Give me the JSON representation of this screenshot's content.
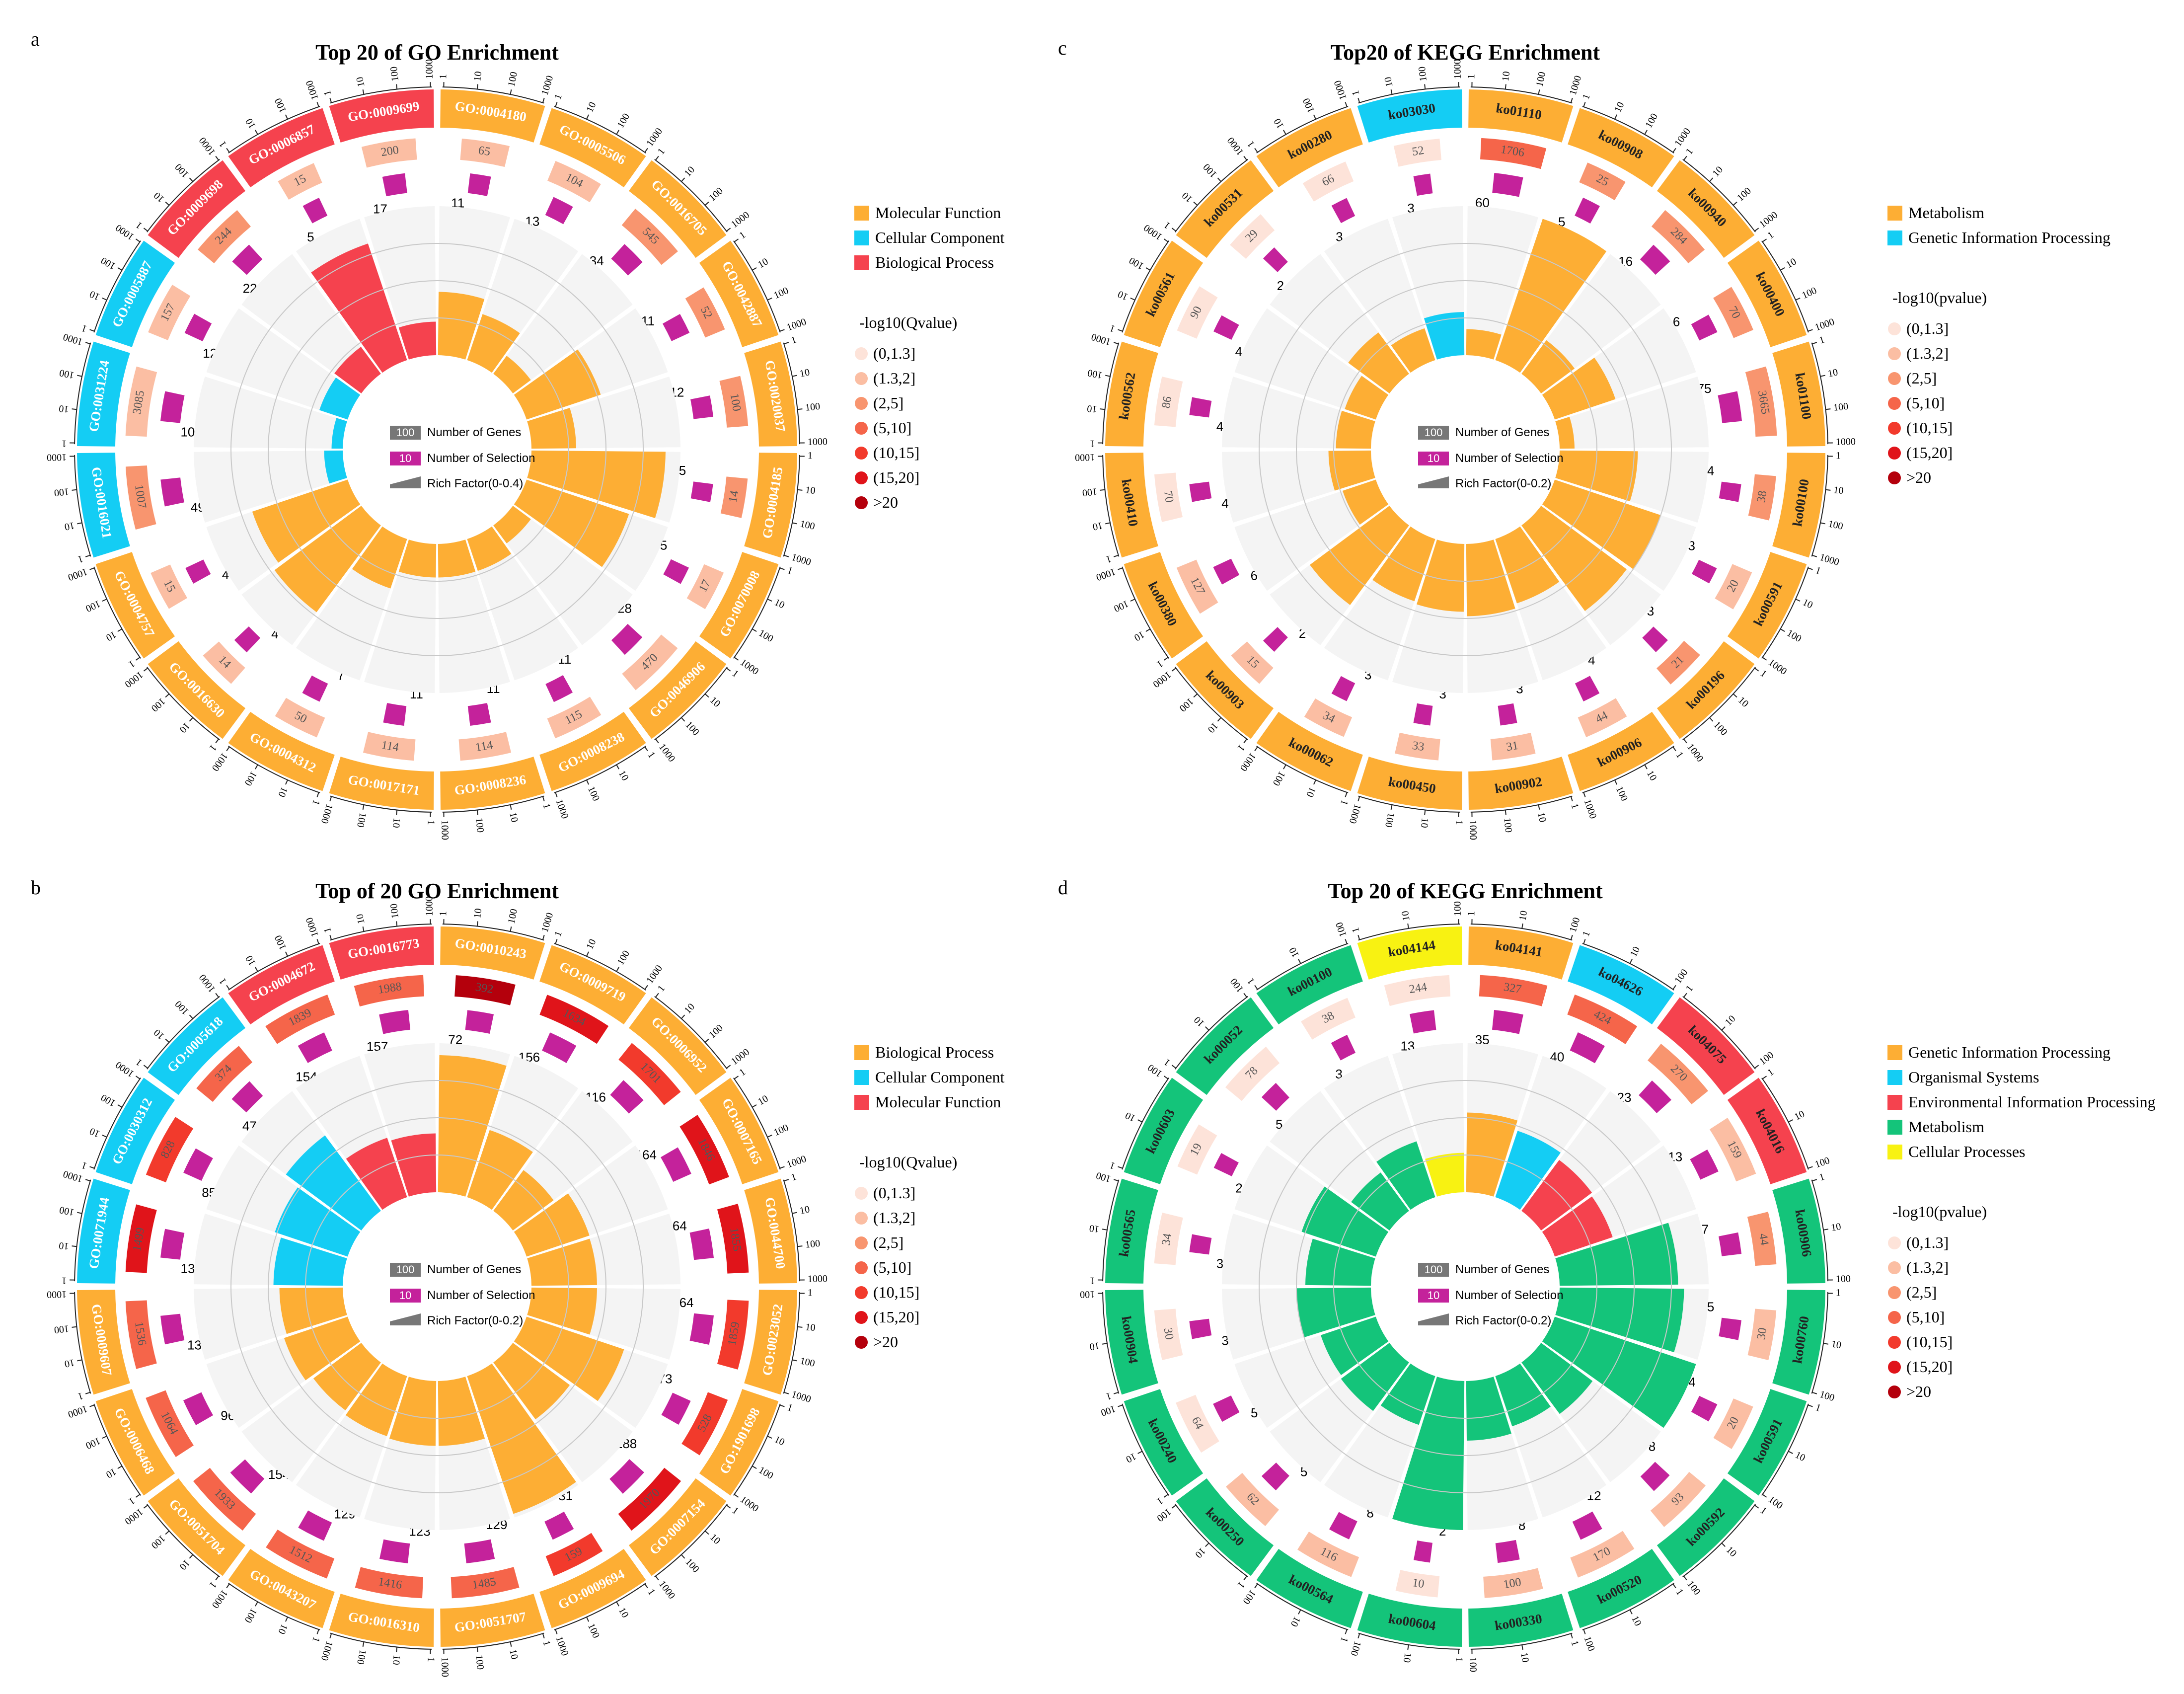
{
  "panels_info": "four circular enrichment plots",
  "colors": {
    "orange": "#fdae34",
    "blue": "#14cdf4",
    "red": "#f5424e",
    "green": "#14c47a",
    "yellow": "#f8f212",
    "magenta": "#c4229b",
    "gray_bg": "#f4f4f4",
    "q0": "#fde3d9",
    "q1": "#fbbea3",
    "q2": "#f8956f",
    "q3": "#f5654a",
    "q4": "#f23a2c",
    "q5": "#e0141a",
    "q6": "#b4000c"
  },
  "shared_legend": {
    "genes_label": "Number of Genes",
    "genes_badge": "100",
    "selection_label": "Number of Selection",
    "selection_badge": "10",
    "q_bins": [
      "(0,1.3]",
      "(1.3,2]",
      "(2,5]",
      "(5,10]",
      "(10,15]",
      "(15,20]",
      ">20"
    ]
  },
  "chart_data": [
    {
      "type": "circular-bar",
      "panel": "a",
      "title": "Top 20 of GO Enrichment",
      "rich_label": "Rich Factor(0-0.4)",
      "rich_max": 0.4,
      "sig_title": "-log10(Qvalue)",
      "categories": [
        {
          "name": "Molecular Function",
          "color": "orange"
        },
        {
          "name": "Cellular Component",
          "color": "blue"
        },
        {
          "name": "Biological Process",
          "color": "red"
        }
      ],
      "ticks": [
        "1",
        "10",
        "100",
        "1000"
      ],
      "terms": [
        {
          "id": "GO:0004180",
          "cat": 0,
          "genes": 65,
          "sel": 11,
          "rich": 0.17,
          "q": 1
        },
        {
          "id": "GO:0005506",
          "cat": 0,
          "genes": 104,
          "sel": 13,
          "rich": 0.13,
          "q": 1
        },
        {
          "id": "GO:0016705",
          "cat": 0,
          "genes": 545,
          "sel": 34,
          "rich": 0.06,
          "q": 2
        },
        {
          "id": "GO:0042887",
          "cat": 0,
          "genes": 52,
          "sel": 11,
          "rich": 0.21,
          "q": 2
        },
        {
          "id": "GO:0020037",
          "cat": 0,
          "genes": 100,
          "sel": 12,
          "rich": 0.12,
          "q": 2
        },
        {
          "id": "GO:0004185",
          "cat": 0,
          "genes": 14,
          "sel": 5,
          "rich": 0.36,
          "q": 2
        },
        {
          "id": "GO:0070008",
          "cat": 0,
          "genes": 17,
          "sel": 5,
          "rich": 0.29,
          "q": 1
        },
        {
          "id": "GO:0046906",
          "cat": 0,
          "genes": 470,
          "sel": 28,
          "rich": 0.06,
          "q": 1
        },
        {
          "id": "GO:0008238",
          "cat": 0,
          "genes": 115,
          "sel": 11,
          "rich": 0.09,
          "q": 1
        },
        {
          "id": "GO:0008236",
          "cat": 0,
          "genes": 114,
          "sel": 11,
          "rich": 0.09,
          "q": 1
        },
        {
          "id": "GO:0017171",
          "cat": 0,
          "genes": 114,
          "sel": 11,
          "rich": 0.09,
          "q": 1
        },
        {
          "id": "GO:0004312",
          "cat": 0,
          "genes": 50,
          "sel": 7,
          "rich": 0.14,
          "q": 1
        },
        {
          "id": "GO:0016630",
          "cat": 0,
          "genes": 14,
          "sel": 4,
          "rich": 0.29,
          "q": 1
        },
        {
          "id": "GO:0004757",
          "cat": 0,
          "genes": 15,
          "sel": 4,
          "rich": 0.27,
          "q": 1
        },
        {
          "id": "GO:0016021",
          "cat": 1,
          "genes": 1007,
          "sel": 49,
          "rich": 0.05,
          "q": 2
        },
        {
          "id": "GO:0031224",
          "cat": 1,
          "genes": 3085,
          "sel": 105,
          "rich": 0.03,
          "q": 1
        },
        {
          "id": "GO:0005887",
          "cat": 1,
          "genes": 157,
          "sel": 12,
          "rich": 0.08,
          "q": 1
        },
        {
          "id": "GO:0009698",
          "cat": 2,
          "genes": 244,
          "sel": 22,
          "rich": 0.09,
          "q": 2
        },
        {
          "id": "GO:0006857",
          "cat": 2,
          "genes": 15,
          "sel": 5,
          "rich": 0.33,
          "q": 1
        },
        {
          "id": "GO:0009699",
          "cat": 2,
          "genes": 200,
          "sel": 17,
          "rich": 0.09,
          "q": 1
        }
      ]
    },
    {
      "type": "circular-bar",
      "panel": "c",
      "title": "Top20 of KEGG Enrichment",
      "rich_label": "Rich Factor(0-0.2)",
      "rich_max": 0.2,
      "sig_title": "-log10(pvalue)",
      "categories": [
        {
          "name": "Metabolism",
          "color": "orange"
        },
        {
          "name": "Genetic Information Processing",
          "color": "blue"
        }
      ],
      "ticks": [
        "1",
        "10",
        "100",
        "1000"
      ],
      "terms": [
        {
          "id": "ko01110",
          "cat": 0,
          "genes": 1706,
          "sel": 60,
          "rich": 0.035,
          "q": 3
        },
        {
          "id": "ko00908",
          "cat": 0,
          "genes": 25,
          "sel": 5,
          "rich": 0.2,
          "q": 2
        },
        {
          "id": "ko00940",
          "cat": 0,
          "genes": 284,
          "sel": 16,
          "rich": 0.056,
          "q": 2
        },
        {
          "id": "ko00400",
          "cat": 0,
          "genes": 70,
          "sel": 6,
          "rich": 0.086,
          "q": 2
        },
        {
          "id": "ko01100",
          "cat": 0,
          "genes": 3665,
          "sel": 75,
          "rich": 0.02,
          "q": 2
        },
        {
          "id": "ko00100",
          "cat": 0,
          "genes": 38,
          "sel": 4,
          "rich": 0.105,
          "q": 2
        },
        {
          "id": "ko00591",
          "cat": 0,
          "genes": 20,
          "sel": 3,
          "rich": 0.15,
          "q": 1
        },
        {
          "id": "ko00196",
          "cat": 0,
          "genes": 21,
          "sel": 3,
          "rich": 0.143,
          "q": 2
        },
        {
          "id": "ko00906",
          "cat": 0,
          "genes": 44,
          "sel": 4,
          "rich": 0.091,
          "q": 1
        },
        {
          "id": "ko00902",
          "cat": 0,
          "genes": 31,
          "sel": 3,
          "rich": 0.097,
          "q": 1
        },
        {
          "id": "ko00450",
          "cat": 0,
          "genes": 33,
          "sel": 3,
          "rich": 0.091,
          "q": 1
        },
        {
          "id": "ko00062",
          "cat": 0,
          "genes": 34,
          "sel": 3,
          "rich": 0.088,
          "q": 1
        },
        {
          "id": "ko00903",
          "cat": 0,
          "genes": 15,
          "sel": 2,
          "rich": 0.133,
          "q": 1
        },
        {
          "id": "ko00380",
          "cat": 0,
          "genes": 127,
          "sel": 6,
          "rich": 0.047,
          "q": 1
        },
        {
          "id": "ko00410",
          "cat": 0,
          "genes": 70,
          "sel": 4,
          "rich": 0.057,
          "q": 0
        },
        {
          "id": "ko00562",
          "cat": 0,
          "genes": 86,
          "sel": 4,
          "rich": 0.047,
          "q": 0
        },
        {
          "id": "ko00561",
          "cat": 0,
          "genes": 90,
          "sel": 4,
          "rich": 0.044,
          "q": 0
        },
        {
          "id": "ko00531",
          "cat": 0,
          "genes": 29,
          "sel": 2,
          "rich": 0.069,
          "q": 0
        },
        {
          "id": "ko00280",
          "cat": 0,
          "genes": 66,
          "sel": 3,
          "rich": 0.045,
          "q": 0
        },
        {
          "id": "ko03030",
          "cat": 1,
          "genes": 52,
          "sel": 3,
          "rich": 0.058,
          "q": 0
        }
      ]
    },
    {
      "type": "circular-bar",
      "panel": "b",
      "title": "Top of 20 GO Enrichment",
      "rich_label": "Rich Factor(0-0.2)",
      "rich_max": 0.2,
      "sig_title": "-log10(Qvalue)",
      "categories": [
        {
          "name": "Biological Process",
          "color": "orange"
        },
        {
          "name": "Cellular Component",
          "color": "blue"
        },
        {
          "name": "Molecular Function",
          "color": "red"
        }
      ],
      "ticks": [
        "1",
        "10",
        "100",
        "1000"
      ],
      "terms": [
        {
          "id": "GO:0010243",
          "cat": 0,
          "genes": 392,
          "sel": 72,
          "rich": 0.184,
          "q": 6
        },
        {
          "id": "GO:0009719",
          "cat": 0,
          "genes": 1634,
          "sel": 156,
          "rich": 0.095,
          "q": 5
        },
        {
          "id": "GO:0006952",
          "cat": 0,
          "genes": 1701,
          "sel": 116,
          "rich": 0.068,
          "q": 4
        },
        {
          "id": "GO:0007165",
          "cat": 0,
          "genes": 1846,
          "sel": 164,
          "rich": 0.089,
          "q": 5
        },
        {
          "id": "GO:0044700",
          "cat": 0,
          "genes": 1855,
          "sel": 164,
          "rich": 0.088,
          "q": 5
        },
        {
          "id": "GO:0023052",
          "cat": 0,
          "genes": 1859,
          "sel": 164,
          "rich": 0.088,
          "q": 4
        },
        {
          "id": "GO:1901698",
          "cat": 0,
          "genes": 528,
          "sel": 73,
          "rich": 0.138,
          "q": 4
        },
        {
          "id": "GO:0007154",
          "cat": 0,
          "genes": 1970,
          "sel": 188,
          "rich": 0.095,
          "q": 5
        },
        {
          "id": "GO:0009694",
          "cat": 0,
          "genes": 159,
          "sel": 31,
          "rich": 0.195,
          "q": 4
        },
        {
          "id": "GO:0051707",
          "cat": 0,
          "genes": 1485,
          "sel": 129,
          "rich": 0.087,
          "q": 3
        },
        {
          "id": "GO:0016310",
          "cat": 0,
          "genes": 1416,
          "sel": 123,
          "rich": 0.087,
          "q": 3
        },
        {
          "id": "GO:0043207",
          "cat": 0,
          "genes": 1512,
          "sel": 129,
          "rich": 0.085,
          "q": 3
        },
        {
          "id": "GO:0051704",
          "cat": 0,
          "genes": 1933,
          "sel": 154,
          "rich": 0.08,
          "q": 3
        },
        {
          "id": "GO:0006468",
          "cat": 0,
          "genes": 1064,
          "sel": 96,
          "rich": 0.09,
          "q": 3
        },
        {
          "id": "GO:0009607",
          "cat": 0,
          "genes": 1536,
          "sel": 130,
          "rich": 0.085,
          "q": 3
        },
        {
          "id": "GO:0071944",
          "cat": 1,
          "genes": 1499,
          "sel": 139,
          "rich": 0.093,
          "q": 5
        },
        {
          "id": "GO:0030312",
          "cat": 1,
          "genes": 828,
          "sel": 85,
          "rich": 0.103,
          "q": 4
        },
        {
          "id": "GO:0005618",
          "cat": 1,
          "genes": 374,
          "sel": 47,
          "rich": 0.126,
          "q": 3
        },
        {
          "id": "GO:0004672",
          "cat": 2,
          "genes": 1839,
          "sel": 154,
          "rich": 0.084,
          "q": 3
        },
        {
          "id": "GO:0016773",
          "cat": 2,
          "genes": 1988,
          "sel": 157,
          "rich": 0.079,
          "q": 3
        }
      ]
    },
    {
      "type": "circular-bar",
      "panel": "d",
      "title": "Top 20 of KEGG Enrichment",
      "rich_label": "Rich Factor(0-0.2)",
      "rich_max": 0.2,
      "sig_title": "-log10(pvalue)",
      "categories": [
        {
          "name": "Genetic Information Processing",
          "color": "orange"
        },
        {
          "name": "Organismal Systems",
          "color": "blue"
        },
        {
          "name": "Environmental Information Processing",
          "color": "red"
        },
        {
          "name": "Metabolism",
          "color": "green"
        },
        {
          "name": "Cellular Processes",
          "color": "yellow"
        }
      ],
      "ticks": [
        "1",
        "10",
        "100"
      ],
      "terms": [
        {
          "id": "ko04141",
          "cat": 0,
          "genes": 327,
          "sel": 35,
          "rich": 0.107,
          "q": 3
        },
        {
          "id": "ko04626",
          "cat": 1,
          "genes": 424,
          "sel": 40,
          "rich": 0.094,
          "q": 3
        },
        {
          "id": "ko04075",
          "cat": 2,
          "genes": 270,
          "sel": 23,
          "rich": 0.085,
          "q": 2
        },
        {
          "id": "ko04016",
          "cat": 2,
          "genes": 159,
          "sel": 13,
          "rich": 0.082,
          "q": 1
        },
        {
          "id": "ko00906",
          "cat": 3,
          "genes": 44,
          "sel": 7,
          "rich": 0.159,
          "q": 2
        },
        {
          "id": "ko00760",
          "cat": 3,
          "genes": 30,
          "sel": 5,
          "rich": 0.167,
          "q": 1
        },
        {
          "id": "ko00591",
          "cat": 3,
          "genes": 20,
          "sel": 4,
          "rich": 0.2,
          "q": 1
        },
        {
          "id": "ko00592",
          "cat": 3,
          "genes": 93,
          "sel": 8,
          "rich": 0.086,
          "q": 1
        },
        {
          "id": "ko00520",
          "cat": 3,
          "genes": 170,
          "sel": 12,
          "rich": 0.071,
          "q": 1
        },
        {
          "id": "ko00330",
          "cat": 3,
          "genes": 100,
          "sel": 8,
          "rich": 0.08,
          "q": 1
        },
        {
          "id": "ko00604",
          "cat": 3,
          "genes": 10,
          "sel": 2,
          "rich": 0.2,
          "q": 0
        },
        {
          "id": "ko00564",
          "cat": 3,
          "genes": 116,
          "sel": 8,
          "rich": 0.069,
          "q": 1
        },
        {
          "id": "ko00250",
          "cat": 3,
          "genes": 62,
          "sel": 5,
          "rich": 0.081,
          "q": 1
        },
        {
          "id": "ko00240",
          "cat": 3,
          "genes": 64,
          "sel": 5,
          "rich": 0.078,
          "q": 0
        },
        {
          "id": "ko00904",
          "cat": 3,
          "genes": 30,
          "sel": 3,
          "rich": 0.1,
          "q": 0
        },
        {
          "id": "ko00565",
          "cat": 3,
          "genes": 34,
          "sel": 3,
          "rich": 0.088,
          "q": 0
        },
        {
          "id": "ko00603",
          "cat": 3,
          "genes": 19,
          "sel": 2,
          "rich": 0.105,
          "q": 0
        },
        {
          "id": "ko00052",
          "cat": 3,
          "genes": 78,
          "sel": 5,
          "rich": 0.064,
          "q": 0
        },
        {
          "id": "ko00100",
          "cat": 3,
          "genes": 38,
          "sel": 3,
          "rich": 0.079,
          "q": 0
        },
        {
          "id": "ko04144",
          "cat": 4,
          "genes": 244,
          "sel": 13,
          "rich": 0.053,
          "q": 0
        }
      ]
    }
  ]
}
